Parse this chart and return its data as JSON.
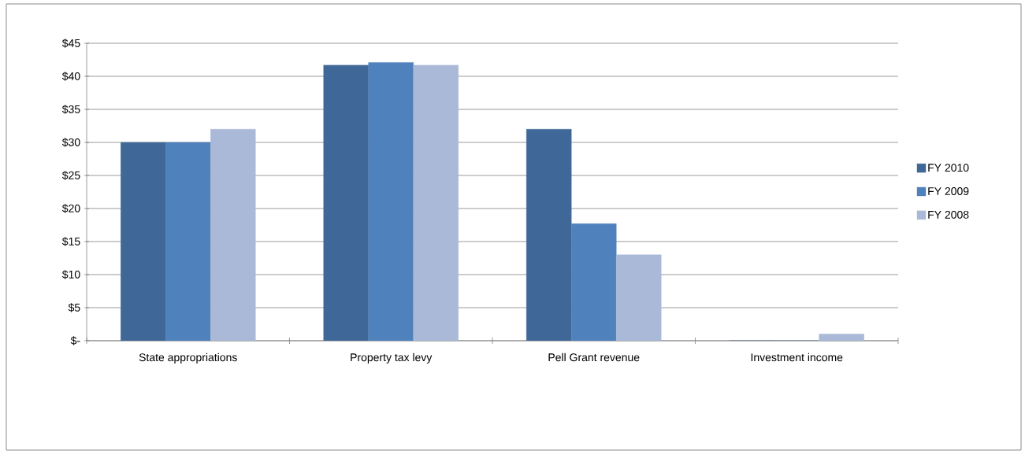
{
  "chart_data": {
    "type": "bar",
    "categories": [
      "State appropriations",
      "Property tax levy",
      "Pell Grant revenue",
      "Investment income"
    ],
    "series": [
      {
        "name": "FY 2010",
        "color": "#3f6898",
        "values": [
          30,
          41.7,
          32,
          0
        ]
      },
      {
        "name": "FY 2009",
        "color": "#4f81bd",
        "values": [
          30,
          42.1,
          17.7,
          0
        ]
      },
      {
        "name": "FY 2008",
        "color": "#aab9d7",
        "values": [
          32,
          41.7,
          13,
          1
        ]
      }
    ],
    "ylim": [
      0,
      45
    ],
    "yticks": [
      {
        "value": 0,
        "label": "$-"
      },
      {
        "value": 5,
        "label": "$5"
      },
      {
        "value": 10,
        "label": "$10"
      },
      {
        "value": 15,
        "label": "$15"
      },
      {
        "value": 20,
        "label": "$20"
      },
      {
        "value": 25,
        "label": "$25"
      },
      {
        "value": 30,
        "label": "$30"
      },
      {
        "value": 35,
        "label": "$35"
      },
      {
        "value": 40,
        "label": "$40"
      },
      {
        "value": 45,
        "label": "$45"
      }
    ],
    "grid": "y",
    "legend": "right"
  }
}
